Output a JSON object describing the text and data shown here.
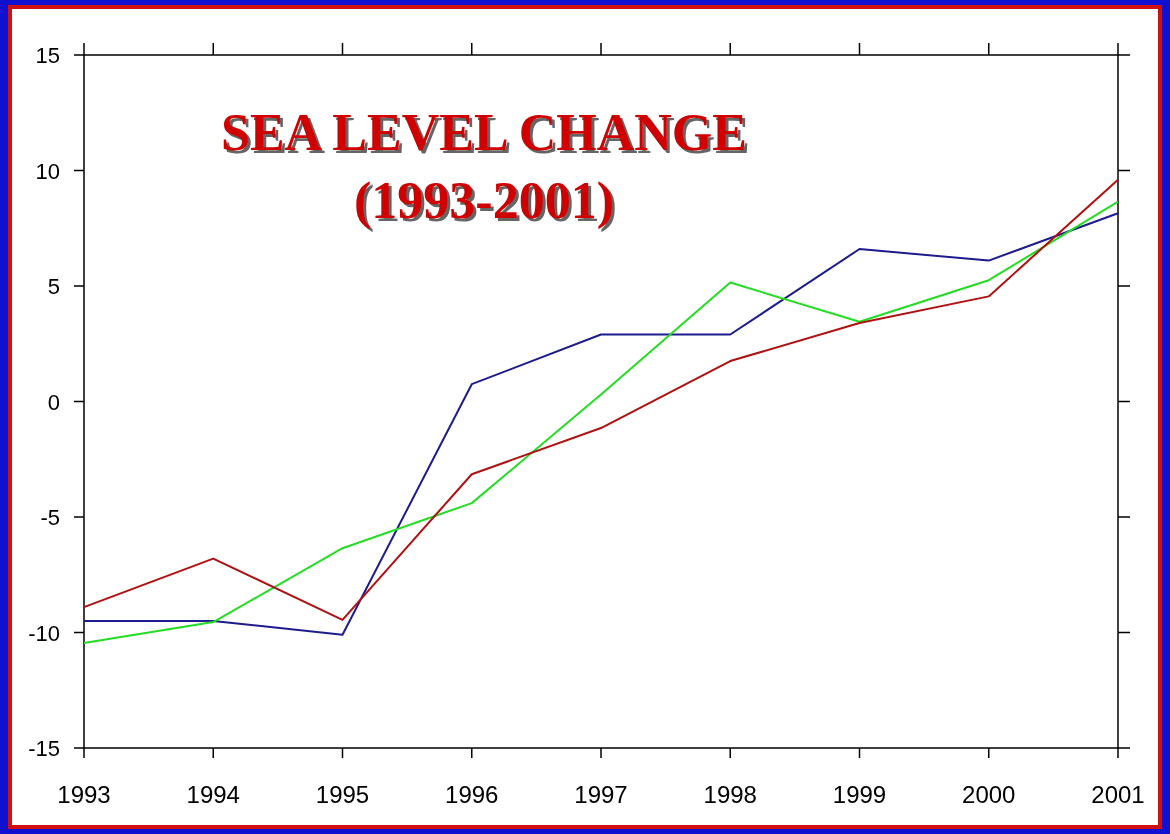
{
  "chart_data": {
    "type": "line",
    "title": "SEA LEVEL CHANGE\n(1993-2001)",
    "x": [
      1993,
      1994,
      1995,
      1996,
      1997,
      1998,
      1999,
      2000,
      2001
    ],
    "xlim": [
      1993,
      2001
    ],
    "xticks": [
      1993,
      1994,
      1995,
      1996,
      1997,
      1998,
      1999,
      2000,
      2001
    ],
    "ylim": [
      -15,
      15
    ],
    "yticks": [
      -15,
      -10,
      -5,
      0,
      5,
      10,
      15
    ],
    "grid": false,
    "marker": "none",
    "line_style": "solid",
    "series": [
      {
        "color": "#1c1c8e",
        "values": [
          -9.5,
          -9.5,
          -10.1,
          0.75,
          2.9,
          2.9,
          6.6,
          6.1,
          8.15
        ]
      },
      {
        "color": "#22dd22",
        "values": [
          -10.45,
          -9.55,
          -6.35,
          -4.4,
          0.3,
          5.15,
          3.45,
          5.25,
          8.65
        ]
      },
      {
        "color": "#b01010",
        "values": [
          -8.9,
          -6.8,
          -9.45,
          -3.15,
          -1.15,
          1.75,
          3.4,
          4.55,
          9.6
        ]
      }
    ]
  }
}
